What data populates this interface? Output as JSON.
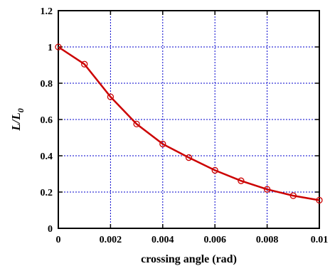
{
  "chart_data": {
    "type": "line",
    "xlabel": "crossing angle (rad)",
    "ylabel_main": "L/L",
    "ylabel_sub": "0",
    "xlim": [
      0,
      0.01
    ],
    "ylim": [
      0,
      1.2
    ],
    "xticks": [
      0,
      0.002,
      0.004,
      0.006,
      0.008,
      0.01
    ],
    "xtick_labels": [
      "0",
      "0.002",
      "0.004",
      "0.006",
      "0.008",
      "0.01"
    ],
    "yticks": [
      0,
      0.2,
      0.4,
      0.6,
      0.8,
      1,
      1.2
    ],
    "ytick_labels": [
      "0",
      "0.2",
      "0.4",
      "0.6",
      "0.8",
      "1",
      "1.2"
    ],
    "grid": true,
    "series": [
      {
        "color": "#cc0000",
        "marker": "open-circle",
        "x": [
          0,
          0.001,
          0.002,
          0.003,
          0.004,
          0.005,
          0.006,
          0.007,
          0.008,
          0.009,
          0.01
        ],
        "y": [
          1.0,
          0.905,
          0.725,
          0.575,
          0.465,
          0.39,
          0.32,
          0.262,
          0.215,
          0.18,
          0.155
        ]
      }
    ],
    "grid_color": "#0000cc"
  }
}
